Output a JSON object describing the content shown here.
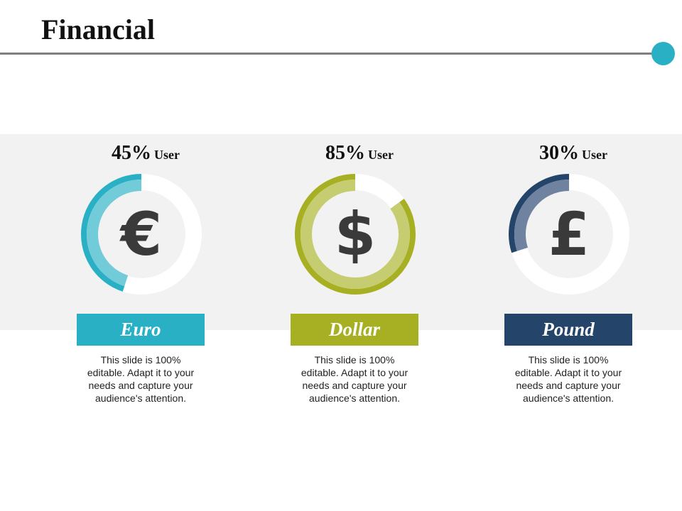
{
  "title": "Financial",
  "colors": {
    "accent_dot": "#2ab0c4",
    "band_background": "#f2f2f2",
    "ring_track": "#ffffff"
  },
  "items": [
    {
      "percent_label": "45%",
      "unit_label": "User",
      "fraction": 0.45,
      "symbol": "€",
      "icon": "euro-icon",
      "label": "Euro",
      "description": "This slide is 100% editable. Adapt it to your needs and capture your audience's attention.",
      "color": "#2ab0c4",
      "light_color": "#72cbd8"
    },
    {
      "percent_label": "85%",
      "unit_label": "User",
      "fraction": 0.85,
      "symbol": "$",
      "icon": "dollar-icon",
      "label": "Dollar",
      "description": "This slide is 100% editable. Adapt it to your needs and capture your audience's attention.",
      "color": "#a6b022",
      "light_color": "#c6cc70"
    },
    {
      "percent_label": "30%",
      "unit_label": "User",
      "fraction": 0.3,
      "symbol": "£",
      "icon": "pound-icon",
      "label": "Pound",
      "description": "This slide is 100% editable. Adapt it to your needs and capture your audience's attention.",
      "color": "#25446a",
      "light_color": "#6f82a0"
    }
  ]
}
